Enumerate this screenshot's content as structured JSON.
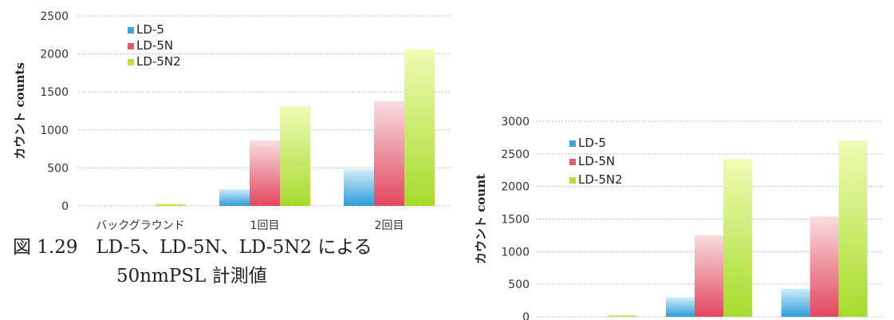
{
  "caption": {
    "line1": "図 1.29　LD-5、LD-5N、LD-5N2 による",
    "line2": "50nmPSL 計測値"
  },
  "chart_data": [
    {
      "type": "bar",
      "title": "",
      "ylabel": "カウント counts",
      "categories": [
        "バックグラウンド",
        "1回目",
        "2回目"
      ],
      "ylim": [
        0,
        2500
      ],
      "yticks": [
        0,
        500,
        1000,
        1500,
        2000,
        2500
      ],
      "grid": true,
      "legend": "top-left",
      "series": [
        {
          "name": "LD-5",
          "color": "#3aa7e0",
          "values": [
            0,
            220,
            480
          ]
        },
        {
          "name": "LD-5N",
          "color": "#e65a6e",
          "values": [
            0,
            860,
            1380
          ]
        },
        {
          "name": "LD-5N2",
          "color": "#b6e03a",
          "values": [
            30,
            1310,
            2060
          ]
        }
      ]
    },
    {
      "type": "bar",
      "title": "",
      "ylabel": "カウント count",
      "categories": [
        "",
        "",
        ""
      ],
      "ylim": [
        0,
        3000
      ],
      "yticks": [
        0,
        500,
        1000,
        1500,
        2000,
        2500,
        3000
      ],
      "grid": true,
      "legend": "top-left",
      "series": [
        {
          "name": "LD-5",
          "color": "#3aa7e0",
          "values": [
            0,
            300,
            430
          ]
        },
        {
          "name": "LD-5N",
          "color": "#e65a6e",
          "values": [
            0,
            1250,
            1540
          ]
        },
        {
          "name": "LD-5N2",
          "color": "#b6e03a",
          "values": [
            25,
            2420,
            2700
          ]
        }
      ]
    }
  ]
}
